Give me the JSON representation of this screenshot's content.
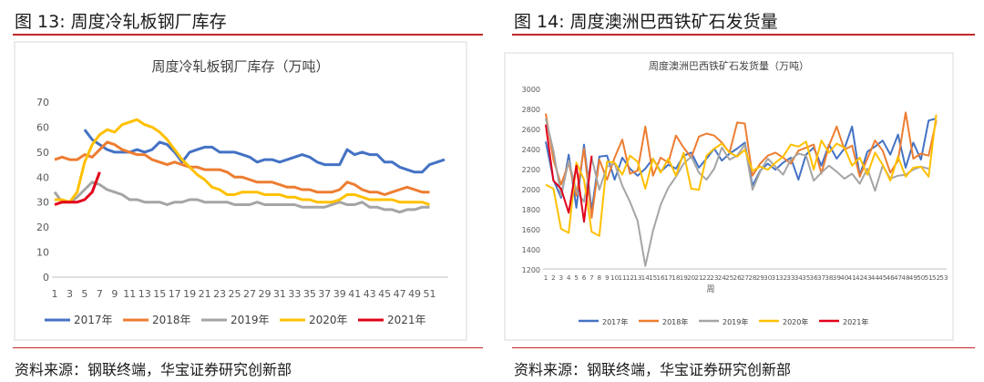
{
  "left": {
    "fig_title": "图 13:  周度冷轧板钢厂库存",
    "source": "资料来源：钢联终端，华宝证券研究创新部",
    "colors": {
      "2017": "#4472c4",
      "2018": "#ed7d31",
      "2019": "#a5a5a5",
      "2020": "#ffc000",
      "2021": "#e2001a"
    },
    "chart_data": {
      "type": "line",
      "title": "周度冷轧板钢厂库存（万吨）",
      "ylim": [
        0,
        70
      ],
      "yticks": [
        "0",
        "10",
        "20",
        "30",
        "40",
        "50",
        "60",
        "70"
      ],
      "xlim": [
        1,
        53
      ],
      "xticks": [
        "1",
        "3",
        "5",
        "7",
        "9",
        "11",
        "13",
        "15",
        "17",
        "19",
        "21",
        "23",
        "25",
        "27",
        "29",
        "31",
        "33",
        "35",
        "37",
        "39",
        "41",
        "43",
        "45",
        "47",
        "49",
        "51"
      ],
      "grid": false,
      "legend_position": "bottom",
      "series": [
        {
          "name": "2017年",
          "start": 5,
          "values": [
            59,
            55,
            53,
            51,
            50,
            50,
            50,
            51,
            50,
            51,
            54,
            53,
            50,
            46,
            50,
            51,
            52,
            52,
            50,
            50,
            50,
            49,
            48,
            46,
            47,
            47,
            46,
            47,
            48,
            49,
            48,
            46,
            45,
            45,
            45,
            51,
            49,
            50,
            49,
            49,
            46,
            46,
            44,
            43,
            42,
            42,
            45,
            46,
            47
          ]
        },
        {
          "name": "2018年",
          "start": 1,
          "values": [
            47,
            48,
            47,
            47,
            49,
            48,
            51,
            54,
            53,
            51,
            50,
            49,
            49,
            47,
            46,
            45,
            46,
            45,
            44,
            44,
            43,
            43,
            43,
            42,
            40,
            40,
            39,
            38,
            38,
            38,
            37,
            36,
            36,
            35,
            35,
            34,
            34,
            34,
            35,
            38,
            37,
            35,
            34,
            34,
            33,
            34,
            35,
            36,
            35,
            34,
            34
          ]
        },
        {
          "name": "2019年",
          "start": 1,
          "values": [
            34,
            30,
            30,
            32,
            35,
            38,
            37,
            35,
            34,
            33,
            31,
            31,
            30,
            30,
            30,
            29,
            30,
            30,
            31,
            31,
            30,
            30,
            30,
            30,
            29,
            29,
            29,
            30,
            29,
            29,
            29,
            29,
            29,
            28,
            28,
            28,
            28,
            29,
            30,
            29,
            29,
            30,
            28,
            28,
            27,
            27,
            26,
            27,
            27,
            28,
            28
          ]
        },
        {
          "name": "2020年",
          "start": 1,
          "values": [
            31,
            31,
            30,
            34,
            46,
            53,
            57,
            59,
            58,
            61,
            62,
            63,
            61,
            60,
            58,
            55,
            51,
            47,
            44,
            41,
            39,
            36,
            35,
            33,
            33,
            34,
            34,
            34,
            33,
            33,
            33,
            32,
            32,
            31,
            31,
            30,
            30,
            30,
            31,
            33,
            33,
            32,
            31,
            31,
            31,
            31,
            30,
            30,
            30,
            30,
            29
          ]
        },
        {
          "name": "2021年",
          "start": 1,
          "values": [
            29,
            30,
            30,
            30,
            31,
            34,
            42
          ]
        }
      ]
    }
  },
  "right": {
    "fig_title": "图 14:  周度澳洲巴西铁矿石发货量",
    "source": "资料来源：钢联终端，华宝证券研究创新部",
    "colors": {
      "2017": "#4472c4",
      "2018": "#ed7d31",
      "2019": "#a5a5a5",
      "2020": "#ffc000",
      "2021": "#e2001a"
    },
    "chart_data": {
      "type": "line",
      "title": "周度澳洲巴西铁矿石发货量（万吨）",
      "xlabel": "周",
      "ylim": [
        1200,
        3000
      ],
      "yticks": [
        "1200",
        "1400",
        "1600",
        "1800",
        "2000",
        "2200",
        "2400",
        "2600",
        "2800",
        "3000"
      ],
      "xticks": [
        "1",
        "2",
        "3",
        "4",
        "5",
        "6",
        "7",
        "8",
        "9",
        "10",
        "11",
        "12",
        "13",
        "14",
        "15",
        "16",
        "17",
        "18",
        "19",
        "20",
        "21",
        "22",
        "23",
        "24",
        "25",
        "26",
        "27",
        "28",
        "29",
        "30",
        "31",
        "32",
        "33",
        "34",
        "35",
        "36",
        "37",
        "38",
        "39",
        "40",
        "41",
        "42",
        "43",
        "44",
        "45",
        "46",
        "47",
        "48",
        "49",
        "50",
        "51",
        "52",
        "53"
      ],
      "grid": false,
      "legend_position": "bottom",
      "series": [
        {
          "name": "2017年",
          "start": 1,
          "values": [
            2470,
            2090,
            1910,
            2340,
            1810,
            2440,
            1780,
            2320,
            2330,
            2090,
            2310,
            2200,
            2130,
            2200,
            2300,
            2170,
            2240,
            2200,
            2330,
            2360,
            2210,
            2300,
            2400,
            2280,
            2350,
            2400,
            2460,
            2030,
            2180,
            2250,
            2190,
            2260,
            2310,
            2090,
            2340,
            2410,
            2230,
            2440,
            2300,
            2400,
            2620,
            2130,
            2370,
            2420,
            2480,
            2340,
            2540,
            2210,
            2460,
            2290,
            2680,
            2700
          ]
        },
        {
          "name": "2018年",
          "start": 1,
          "values": [
            2750,
            2290,
            2040,
            2260,
            1930,
            2400,
            1710,
            2290,
            2090,
            2310,
            2490,
            2150,
            2180,
            2620,
            2130,
            2310,
            2260,
            2530,
            2410,
            2310,
            2520,
            2550,
            2530,
            2460,
            2360,
            2660,
            2650,
            2130,
            2250,
            2330,
            2360,
            2310,
            2250,
            2380,
            2410,
            2440,
            2150,
            2430,
            2620,
            2390,
            2430,
            2120,
            2300,
            2480,
            2380,
            2160,
            2280,
            2760,
            2300,
            2350,
            2330,
            2680
          ]
        },
        {
          "name": "2019年",
          "start": 1,
          "values": [
            2700,
            2380,
            1930,
            2280,
            1980,
            1870,
            2310,
            1990,
            2220,
            2250,
            2030,
            1870,
            1680,
            1230,
            1580,
            1840,
            2010,
            2120,
            2250,
            2320,
            2160,
            2090,
            2200,
            2410,
            2290,
            2330,
            2440,
            1990,
            2170,
            2300,
            2220,
            2140,
            2290,
            2350,
            2330,
            2080,
            2160,
            2230,
            2170,
            2100,
            2150,
            2050,
            2200,
            1980,
            2230,
            2100,
            2130,
            2140,
            2190,
            2220,
            2200
          ]
        },
        {
          "name": "2020年",
          "start": 1,
          "values": [
            2040,
            2000,
            1600,
            1560,
            2260,
            2090,
            1570,
            1530,
            2270,
            2260,
            2140,
            2330,
            2270,
            2000,
            2300,
            2160,
            2300,
            2130,
            2360,
            2000,
            1990,
            2330,
            2400,
            2450,
            2360,
            2320,
            2390,
            2180,
            2220,
            2190,
            2260,
            2320,
            2440,
            2420,
            2470,
            2190,
            2480,
            2360,
            2450,
            2410,
            2230,
            2310,
            2140,
            2360,
            2240,
            2080,
            2320,
            2120,
            2210,
            2220,
            2120,
            2740
          ]
        },
        {
          "name": "2021年",
          "start": 1,
          "values": [
            2640,
            2080,
            2000,
            1760,
            2230,
            1670,
            2330
          ]
        }
      ]
    }
  }
}
